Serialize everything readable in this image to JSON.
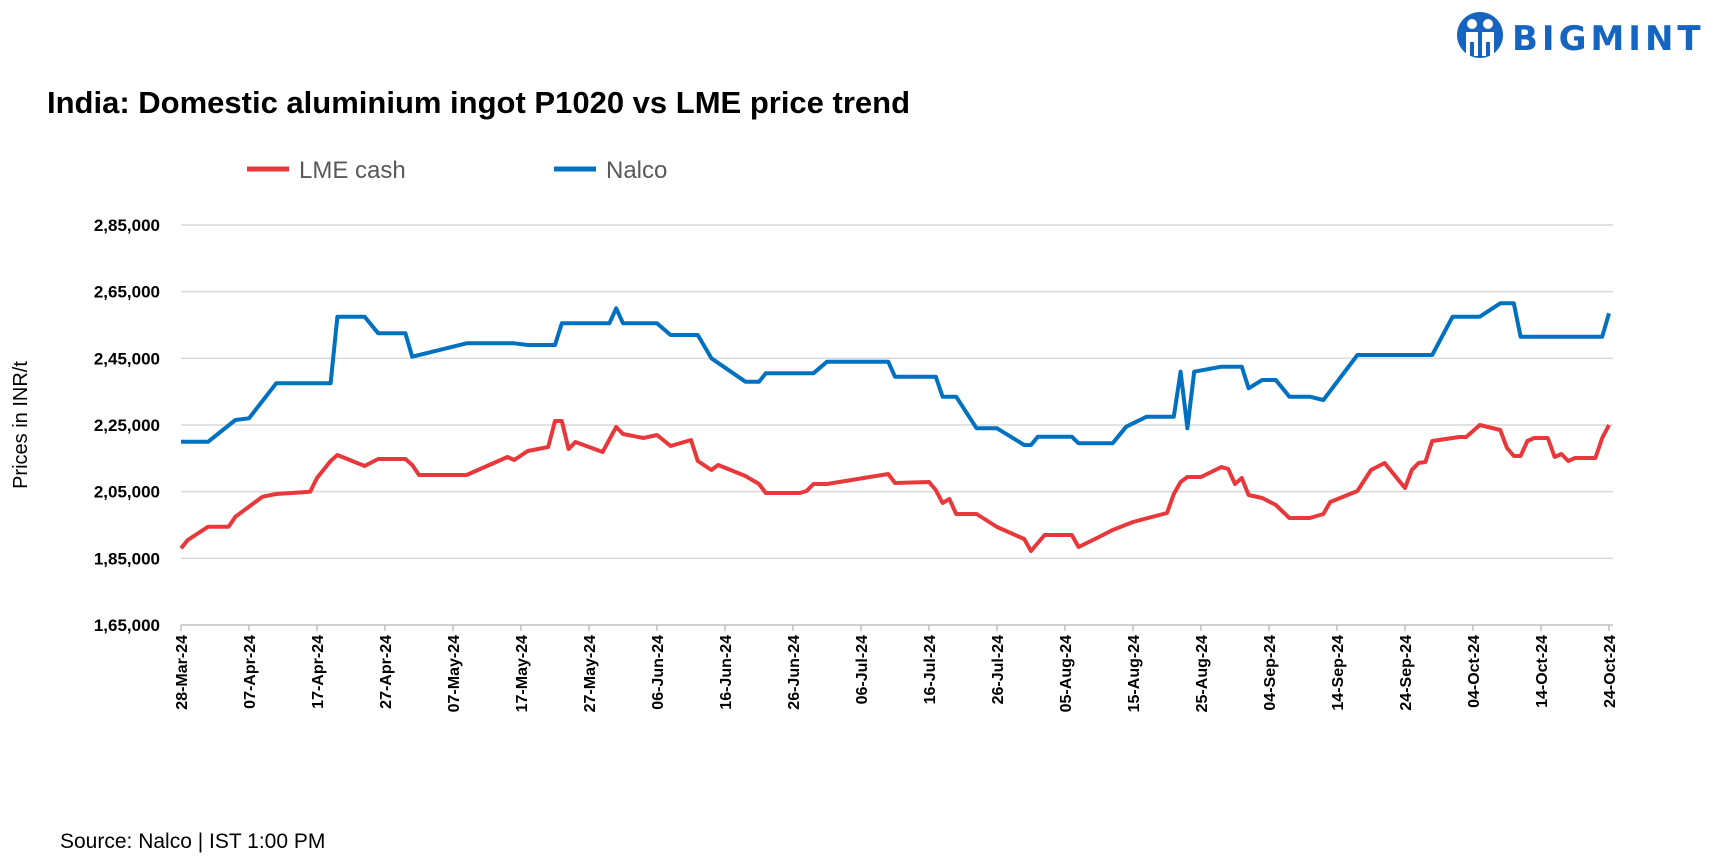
{
  "brand": {
    "name": "BIGMINT",
    "color": "#1565c0",
    "icon": "people-logo-icon"
  },
  "source": "Source: Nalco | IST 1:00 PM",
  "chart_data": {
    "type": "line",
    "title": "India: Domestic aluminium ingot P1020 vs LME price trend",
    "xlabel": "",
    "ylabel": "Prices in INR/t",
    "ylim": [
      165000,
      285000
    ],
    "yticks": [
      165000,
      185000,
      205000,
      225000,
      245000,
      265000,
      285000
    ],
    "ytick_labels": [
      "1,65,000",
      "1,85,000",
      "2,05,000",
      "2,25,000",
      "2,45,000",
      "2,65,000",
      "2,85,000"
    ],
    "xlim": [
      "28-Mar-24",
      "24-Oct-24"
    ],
    "xtick_labels": [
      "28-Mar-24",
      "07-Apr-24",
      "17-Apr-24",
      "27-Apr-24",
      "07-May-24",
      "17-May-24",
      "27-May-24",
      "06-Jun-24",
      "16-Jun-24",
      "26-Jun-24",
      "06-Jul-24",
      "16-Jul-24",
      "26-Jul-24",
      "05-Aug-24",
      "15-Aug-24",
      "25-Aug-24",
      "04-Sep-24",
      "14-Sep-24",
      "24-Sep-24",
      "04-Oct-24",
      "14-Oct-24",
      "24-Oct-24"
    ],
    "grid": true,
    "legend_position": "top-left",
    "series": [
      {
        "name": "LME cash",
        "color": "#e8383b",
        "points": [
          [
            "28-Mar-24",
            188000
          ],
          [
            "29-Mar-24",
            190500
          ],
          [
            "01-Apr-24",
            194500
          ],
          [
            "04-Apr-24",
            194500
          ],
          [
            "05-Apr-24",
            197500
          ],
          [
            "09-Apr-24",
            203500
          ],
          [
            "11-Apr-24",
            204300
          ],
          [
            "16-Apr-24",
            205000
          ],
          [
            "17-Apr-24",
            209100
          ],
          [
            "19-Apr-24",
            214200
          ],
          [
            "20-Apr-24",
            216000
          ],
          [
            "24-Apr-24",
            212700
          ],
          [
            "26-Apr-24",
            214800
          ],
          [
            "30-Apr-24",
            214800
          ],
          [
            "01-May-24",
            213000
          ],
          [
            "02-May-24",
            210000
          ],
          [
            "09-May-24",
            210000
          ],
          [
            "15-May-24",
            215400
          ],
          [
            "16-May-24",
            214500
          ],
          [
            "18-May-24",
            217200
          ],
          [
            "21-May-24",
            218400
          ],
          [
            "22-May-24",
            226200
          ],
          [
            "23-May-24",
            226200
          ],
          [
            "24-May-24",
            217800
          ],
          [
            "25-May-24",
            219900
          ],
          [
            "29-May-24",
            216900
          ],
          [
            "31-May-24",
            224400
          ],
          [
            "01-Jun-24",
            222300
          ],
          [
            "04-Jun-24",
            221100
          ],
          [
            "06-Jun-24",
            222000
          ],
          [
            "08-Jun-24",
            218700
          ],
          [
            "11-Jun-24",
            220500
          ],
          [
            "12-Jun-24",
            214200
          ],
          [
            "14-Jun-24",
            211500
          ],
          [
            "15-Jun-24",
            213000
          ],
          [
            "19-Jun-24",
            209700
          ],
          [
            "21-Jun-24",
            207300
          ],
          [
            "22-Jun-24",
            204600
          ],
          [
            "27-Jun-24",
            204600
          ],
          [
            "28-Jun-24",
            205200
          ],
          [
            "29-Jun-24",
            207300
          ],
          [
            "01-Jul-24",
            207300
          ],
          [
            "10-Jul-24",
            210300
          ],
          [
            "11-Jul-24",
            207600
          ],
          [
            "16-Jul-24",
            207900
          ],
          [
            "17-Jul-24",
            205500
          ],
          [
            "18-Jul-24",
            201600
          ],
          [
            "19-Jul-24",
            202800
          ],
          [
            "20-Jul-24",
            198300
          ],
          [
            "23-Jul-24",
            198300
          ],
          [
            "26-Jul-24",
            194400
          ],
          [
            "30-Jul-24",
            190800
          ],
          [
            "31-Jul-24",
            187200
          ],
          [
            "02-Aug-24",
            192000
          ],
          [
            "06-Aug-24",
            192000
          ],
          [
            "07-Aug-24",
            188400
          ],
          [
            "10-Aug-24",
            191400
          ],
          [
            "12-Aug-24",
            193500
          ],
          [
            "15-Aug-24",
            195900
          ],
          [
            "20-Aug-24",
            198600
          ],
          [
            "21-Aug-24",
            204300
          ],
          [
            "22-Aug-24",
            207900
          ],
          [
            "23-Aug-24",
            209400
          ],
          [
            "25-Aug-24",
            209400
          ],
          [
            "28-Aug-24",
            212400
          ],
          [
            "29-Aug-24",
            211800
          ],
          [
            "30-Aug-24",
            207300
          ],
          [
            "31-Aug-24",
            209100
          ],
          [
            "01-Sep-24",
            204000
          ],
          [
            "03-Sep-24",
            203100
          ],
          [
            "05-Sep-24",
            201000
          ],
          [
            "07-Sep-24",
            197100
          ],
          [
            "10-Sep-24",
            197100
          ],
          [
            "12-Sep-24",
            198300
          ],
          [
            "13-Sep-24",
            201900
          ],
          [
            "17-Sep-24",
            205200
          ],
          [
            "19-Sep-24",
            211500
          ],
          [
            "21-Sep-24",
            213600
          ],
          [
            "24-Sep-24",
            206100
          ],
          [
            "25-Sep-24",
            211500
          ],
          [
            "26-Sep-24",
            213600
          ],
          [
            "27-Sep-24",
            213900
          ],
          [
            "28-Sep-24",
            220200
          ],
          [
            "02-Oct-24",
            221400
          ],
          [
            "03-Oct-24",
            221400
          ],
          [
            "05-Oct-24",
            225000
          ],
          [
            "08-Oct-24",
            223500
          ],
          [
            "09-Oct-24",
            218100
          ],
          [
            "10-Oct-24",
            215700
          ],
          [
            "11-Oct-24",
            215700
          ],
          [
            "12-Oct-24",
            220200
          ],
          [
            "13-Oct-24",
            221100
          ],
          [
            "15-Oct-24",
            221100
          ],
          [
            "16-Oct-24",
            215400
          ],
          [
            "17-Oct-24",
            216300
          ],
          [
            "18-Oct-24",
            214200
          ],
          [
            "19-Oct-24",
            215100
          ],
          [
            "22-Oct-24",
            215100
          ],
          [
            "23-Oct-24",
            221100
          ],
          [
            "24-Oct-24",
            225000
          ]
        ]
      },
      {
        "name": "Nalco",
        "color": "#0070c0",
        "points": [
          [
            "28-Mar-24",
            220000
          ],
          [
            "01-Apr-24",
            220000
          ],
          [
            "05-Apr-24",
            226500
          ],
          [
            "07-Apr-24",
            227000
          ],
          [
            "11-Apr-24",
            237500
          ],
          [
            "19-Apr-24",
            237500
          ],
          [
            "20-Apr-24",
            257500
          ],
          [
            "24-Apr-24",
            257500
          ],
          [
            "26-Apr-24",
            252500
          ],
          [
            "30-Apr-24",
            252500
          ],
          [
            "01-May-24",
            245500
          ],
          [
            "09-May-24",
            249500
          ],
          [
            "16-May-24",
            249500
          ],
          [
            "18-May-24",
            249000
          ],
          [
            "22-May-24",
            249000
          ],
          [
            "23-May-24",
            255500
          ],
          [
            "30-May-24",
            255500
          ],
          [
            "31-May-24",
            260000
          ],
          [
            "01-Jun-24",
            255500
          ],
          [
            "06-Jun-24",
            255500
          ],
          [
            "08-Jun-24",
            252000
          ],
          [
            "12-Jun-24",
            252000
          ],
          [
            "14-Jun-24",
            245000
          ],
          [
            "19-Jun-24",
            238000
          ],
          [
            "21-Jun-24",
            238000
          ],
          [
            "22-Jun-24",
            240500
          ],
          [
            "29-Jun-24",
            240500
          ],
          [
            "01-Jul-24",
            244000
          ],
          [
            "10-Jul-24",
            244000
          ],
          [
            "11-Jul-24",
            239500
          ],
          [
            "17-Jul-24",
            239500
          ],
          [
            "18-Jul-24",
            233500
          ],
          [
            "20-Jul-24",
            233500
          ],
          [
            "23-Jul-24",
            224000
          ],
          [
            "26-Jul-24",
            224000
          ],
          [
            "30-Jul-24",
            219000
          ],
          [
            "31-Jul-24",
            219000
          ],
          [
            "01-Aug-24",
            221500
          ],
          [
            "06-Aug-24",
            221500
          ],
          [
            "07-Aug-24",
            219500
          ],
          [
            "12-Aug-24",
            219500
          ],
          [
            "14-Aug-24",
            224500
          ],
          [
            "17-Aug-24",
            227500
          ],
          [
            "21-Aug-24",
            227500
          ],
          [
            "22-Aug-24",
            241000
          ],
          [
            "23-Aug-24",
            224000
          ],
          [
            "24-Aug-24",
            241000
          ],
          [
            "28-Aug-24",
            242500
          ],
          [
            "31-Aug-24",
            242500
          ],
          [
            "01-Sep-24",
            236000
          ],
          [
            "03-Sep-24",
            238500
          ],
          [
            "05-Sep-24",
            238500
          ],
          [
            "07-Sep-24",
            233500
          ],
          [
            "10-Sep-24",
            233500
          ],
          [
            "12-Sep-24",
            232500
          ],
          [
            "17-Sep-24",
            246000
          ],
          [
            "28-Sep-24",
            246000
          ],
          [
            "01-Oct-24",
            257500
          ],
          [
            "05-Oct-24",
            257500
          ],
          [
            "08-Oct-24",
            261500
          ],
          [
            "10-Oct-24",
            261500
          ],
          [
            "11-Oct-24",
            251500
          ],
          [
            "23-Oct-24",
            251500
          ],
          [
            "24-Oct-24",
            258500
          ]
        ]
      }
    ]
  }
}
